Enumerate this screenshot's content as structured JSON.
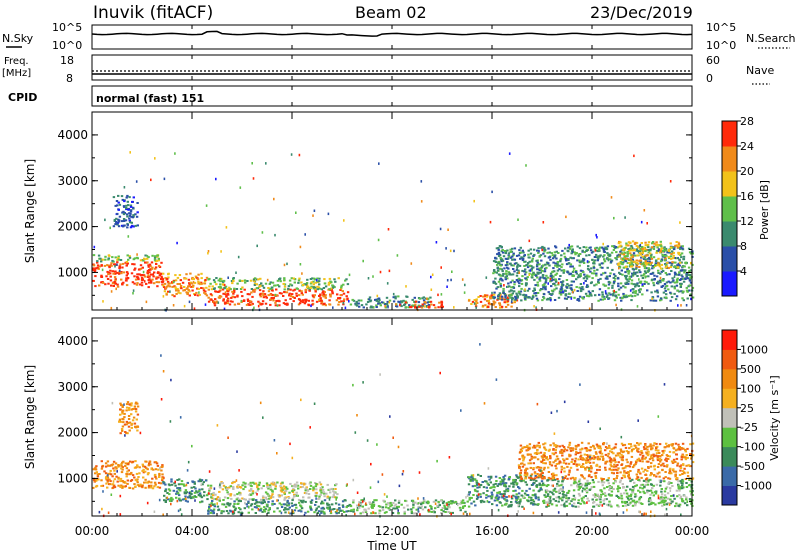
{
  "header": {
    "station": "Inuvik (fitACF)",
    "beam": "Beam 02",
    "date": "23/Dec/2019"
  },
  "top_panels": {
    "nsky_label": "N.Sky",
    "nsearch_label": "N.Search",
    "nsky_ticks": [
      "10^5",
      "10^0"
    ],
    "nsearch_ticks": [
      "10^5",
      "10^0"
    ],
    "freq_label": "Freq.",
    "freq_unit": "[MHz]",
    "freq_ticks": [
      "18",
      "8"
    ],
    "nave_label": "Nave",
    "nave_ticks": [
      "60",
      "0"
    ],
    "cpid_label": "CPID",
    "cpid_value": "normal (fast) 151"
  },
  "chart_data": [
    {
      "type": "heatmap",
      "name": "power",
      "ylabel": "Slant Range [km]",
      "xlabel": "Time UT",
      "x_ticks": [
        "00:00",
        "04:00",
        "08:00",
        "12:00",
        "16:00",
        "20:00",
        "00:00"
      ],
      "y_ticks": [
        "1000",
        "2000",
        "3000",
        "4000"
      ],
      "xlim_hours": [
        0,
        24
      ],
      "ylim_km": [
        180,
        4500
      ],
      "colorbar": {
        "label": "Power [dB]",
        "ticks": [
          "4",
          "8",
          "12",
          "16",
          "20",
          "24",
          "28"
        ],
        "colors": [
          "#1a1aff",
          "#2a4fa8",
          "#3a8a6e",
          "#5fbf4a",
          "#f2c21a",
          "#f08a1a",
          "#ff2a0a"
        ]
      },
      "regions": [
        {
          "t0": 0.0,
          "t1": 2.8,
          "r0": 700,
          "r1": 1250,
          "level": 6
        },
        {
          "t0": 0.0,
          "t1": 2.8,
          "r0": 1250,
          "r1": 1400,
          "level": 3
        },
        {
          "t0": 2.8,
          "t1": 4.6,
          "r0": 500,
          "r1": 1000,
          "level": 5
        },
        {
          "t0": 4.6,
          "t1": 10.2,
          "r0": 300,
          "r1": 650,
          "level": 6
        },
        {
          "t0": 4.6,
          "t1": 10.2,
          "r0": 650,
          "r1": 900,
          "level": 3
        },
        {
          "t0": 10.2,
          "t1": 13.5,
          "r0": 250,
          "r1": 500,
          "level": 2
        },
        {
          "t0": 12.5,
          "t1": 14.0,
          "r0": 250,
          "r1": 400,
          "level": 6
        },
        {
          "t0": 15.0,
          "t1": 17.0,
          "r0": 250,
          "r1": 550,
          "level": 5
        },
        {
          "t0": 16.0,
          "t1": 24.0,
          "r0": 400,
          "r1": 1600,
          "level": 2
        },
        {
          "t0": 21.0,
          "t1": 23.5,
          "r0": 1100,
          "r1": 1700,
          "level": 4
        },
        {
          "t0": 0.8,
          "t1": 1.8,
          "r0": 2000,
          "r1": 2700,
          "level": 1
        }
      ]
    },
    {
      "type": "heatmap",
      "name": "velocity",
      "ylabel": "Slant Range [km]",
      "xlabel": "Time UT",
      "x_ticks": [
        "00:00",
        "04:00",
        "08:00",
        "12:00",
        "16:00",
        "20:00",
        "00:00"
      ],
      "y_ticks": [
        "1000",
        "2000",
        "3000",
        "4000"
      ],
      "xlim_hours": [
        0,
        24
      ],
      "ylim_km": [
        180,
        4500
      ],
      "colorbar": {
        "label": "Velocity [m s⁻¹]",
        "ticks": [
          "1000",
          "500",
          "100",
          "25",
          "-25",
          "-100",
          "-500",
          "-1000"
        ],
        "colors": [
          "#2a3aa0",
          "#3a6aa8",
          "#3a8a5a",
          "#5cc040",
          "#c0c0b8",
          "#f5b020",
          "#f08a10",
          "#f05a10",
          "#ff1a0a"
        ]
      },
      "regions": [
        {
          "t0": 0.0,
          "t1": 2.8,
          "r0": 800,
          "r1": 1400,
          "level": 6
        },
        {
          "t0": 2.8,
          "t1": 4.6,
          "r0": 500,
          "r1": 1000,
          "level": 2
        },
        {
          "t0": 4.6,
          "t1": 9.8,
          "r0": 550,
          "r1": 950,
          "level": 4
        },
        {
          "t0": 4.6,
          "t1": 10.2,
          "r0": 250,
          "r1": 550,
          "level": 2
        },
        {
          "t0": 10.2,
          "t1": 15.0,
          "r0": 250,
          "r1": 550,
          "level": 3
        },
        {
          "t0": 15.0,
          "t1": 18.0,
          "r0": 400,
          "r1": 1100,
          "level": 2
        },
        {
          "t0": 18.0,
          "t1": 24.0,
          "r0": 400,
          "r1": 1000,
          "level": 3
        },
        {
          "t0": 17.0,
          "t1": 24.0,
          "r0": 1000,
          "r1": 1800,
          "level": 6
        },
        {
          "t0": 1.0,
          "t1": 1.8,
          "r0": 2000,
          "r1": 2700,
          "level": 6
        }
      ]
    }
  ]
}
